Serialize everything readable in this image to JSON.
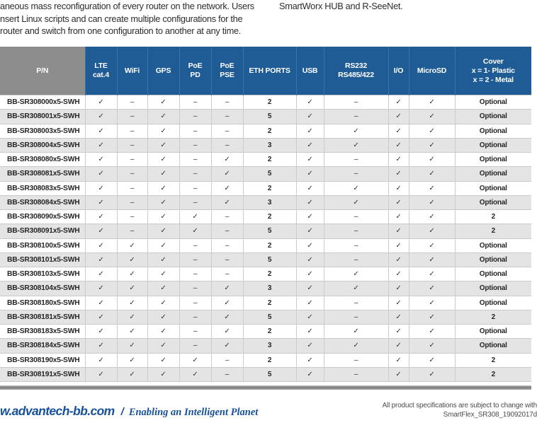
{
  "intro": {
    "left_lines": [
      "aneous mass reconfiguration of every router on the network. Users",
      "nsert Linux scripts and can create multiple configurations for the",
      "router and switch from one configuration to another at any time."
    ],
    "right_line": "SmartWorx HUB and R-SeeNet."
  },
  "table": {
    "columns": [
      "P/N",
      "LTE\ncat.4",
      "WiFi",
      "GPS",
      "PoE\nPD",
      "PoE\nPSE",
      "ETH PORTS",
      "USB",
      "RS232\nRS485/422",
      "I/O",
      "MicroSD",
      "Cover\nx = 1- Plastic\nx = 2 - Metal"
    ],
    "rows": [
      {
        "pn": "BB-SR308000x5-SWH",
        "values": [
          "✓",
          "–",
          "✓",
          "–",
          "–",
          "2",
          "✓",
          "–",
          "✓",
          "✓",
          "Optional"
        ]
      },
      {
        "pn": "BB-SR308001x5-SWH",
        "values": [
          "✓",
          "–",
          "✓",
          "–",
          "–",
          "5",
          "✓",
          "–",
          "✓",
          "✓",
          "Optional"
        ]
      },
      {
        "pn": "BB-SR308003x5-SWH",
        "values": [
          "✓",
          "–",
          "✓",
          "–",
          "–",
          "2",
          "✓",
          "✓",
          "✓",
          "✓",
          "Optional"
        ]
      },
      {
        "pn": "BB-SR308004x5-SWH",
        "values": [
          "✓",
          "–",
          "✓",
          "–",
          "–",
          "3",
          "✓",
          "✓",
          "✓",
          "✓",
          "Optional"
        ]
      },
      {
        "pn": "BB-SR308080x5-SWH",
        "values": [
          "✓",
          "–",
          "✓",
          "–",
          "✓",
          "2",
          "✓",
          "–",
          "✓",
          "✓",
          "Optional"
        ]
      },
      {
        "pn": "BB-SR308081x5-SWH",
        "values": [
          "✓",
          "–",
          "✓",
          "–",
          "✓",
          "5",
          "✓",
          "–",
          "✓",
          "✓",
          "Optional"
        ]
      },
      {
        "pn": "BB-SR308083x5-SWH",
        "values": [
          "✓",
          "–",
          "✓",
          "–",
          "✓",
          "2",
          "✓",
          "✓",
          "✓",
          "✓",
          "Optional"
        ]
      },
      {
        "pn": "BB-SR308084x5-SWH",
        "values": [
          "✓",
          "–",
          "✓",
          "–",
          "✓",
          "3",
          "✓",
          "✓",
          "✓",
          "✓",
          "Optional"
        ]
      },
      {
        "pn": "BB-SR308090x5-SWH",
        "values": [
          "✓",
          "–",
          "✓",
          "✓",
          "–",
          "2",
          "✓",
          "–",
          "✓",
          "✓",
          "2"
        ]
      },
      {
        "pn": "BB-SR308091x5-SWH",
        "values": [
          "✓",
          "–",
          "✓",
          "✓",
          "–",
          "5",
          "✓",
          "–",
          "✓",
          "✓",
          "2"
        ]
      },
      {
        "pn": "BB-SR308100x5-SWH",
        "values": [
          "✓",
          "✓",
          "✓",
          "–",
          "–",
          "2",
          "✓",
          "–",
          "✓",
          "✓",
          "Optional"
        ]
      },
      {
        "pn": "BB-SR308101x5-SWH",
        "values": [
          "✓",
          "✓",
          "✓",
          "–",
          "–",
          "5",
          "✓",
          "–",
          "✓",
          "✓",
          "Optional"
        ]
      },
      {
        "pn": "BB-SR308103x5-SWH",
        "values": [
          "✓",
          "✓",
          "✓",
          "–",
          "–",
          "2",
          "✓",
          "✓",
          "✓",
          "✓",
          "Optional"
        ]
      },
      {
        "pn": "BB-SR308104x5-SWH",
        "values": [
          "✓",
          "✓",
          "✓",
          "–",
          "✓",
          "3",
          "✓",
          "✓",
          "✓",
          "✓",
          "Optional"
        ]
      },
      {
        "pn": "BB-SR308180x5-SWH",
        "values": [
          "✓",
          "✓",
          "✓",
          "–",
          "✓",
          "2",
          "✓",
          "–",
          "✓",
          "✓",
          "Optional"
        ]
      },
      {
        "pn": "BB-SR308181x5-SWH",
        "values": [
          "✓",
          "✓",
          "✓",
          "–",
          "✓",
          "5",
          "✓",
          "–",
          "✓",
          "✓",
          "2"
        ]
      },
      {
        "pn": "BB-SR308183x5-SWH",
        "values": [
          "✓",
          "✓",
          "✓",
          "–",
          "✓",
          "2",
          "✓",
          "✓",
          "✓",
          "✓",
          "Optional"
        ]
      },
      {
        "pn": "BB-SR308184x5-SWH",
        "values": [
          "✓",
          "✓",
          "✓",
          "–",
          "✓",
          "3",
          "✓",
          "✓",
          "✓",
          "✓",
          "Optional"
        ]
      },
      {
        "pn": "BB-SR308190x5-SWH",
        "values": [
          "✓",
          "✓",
          "✓",
          "✓",
          "–",
          "2",
          "✓",
          "–",
          "✓",
          "✓",
          "2"
        ]
      },
      {
        "pn": "BB-SR308191x5-SWH",
        "values": [
          "✓",
          "✓",
          "✓",
          "✓",
          "–",
          "5",
          "✓",
          "–",
          "✓",
          "✓",
          "2"
        ]
      }
    ]
  },
  "footer": {
    "website": "w.advantech-bb.com",
    "separator": "/",
    "tagline": "Enabling an Intelligent Planet",
    "note_line1": "All product specifications are subject to change with",
    "note_line2": "SmartFlex_SR308_19092017d"
  },
  "colors": {
    "header_blue": "#1F5C96",
    "header_gray": "#8C8C8C",
    "row_alt_gray": "#E4E4E4",
    "footer_blue": "#17519C",
    "divider_gray": "#8D8D8D"
  }
}
